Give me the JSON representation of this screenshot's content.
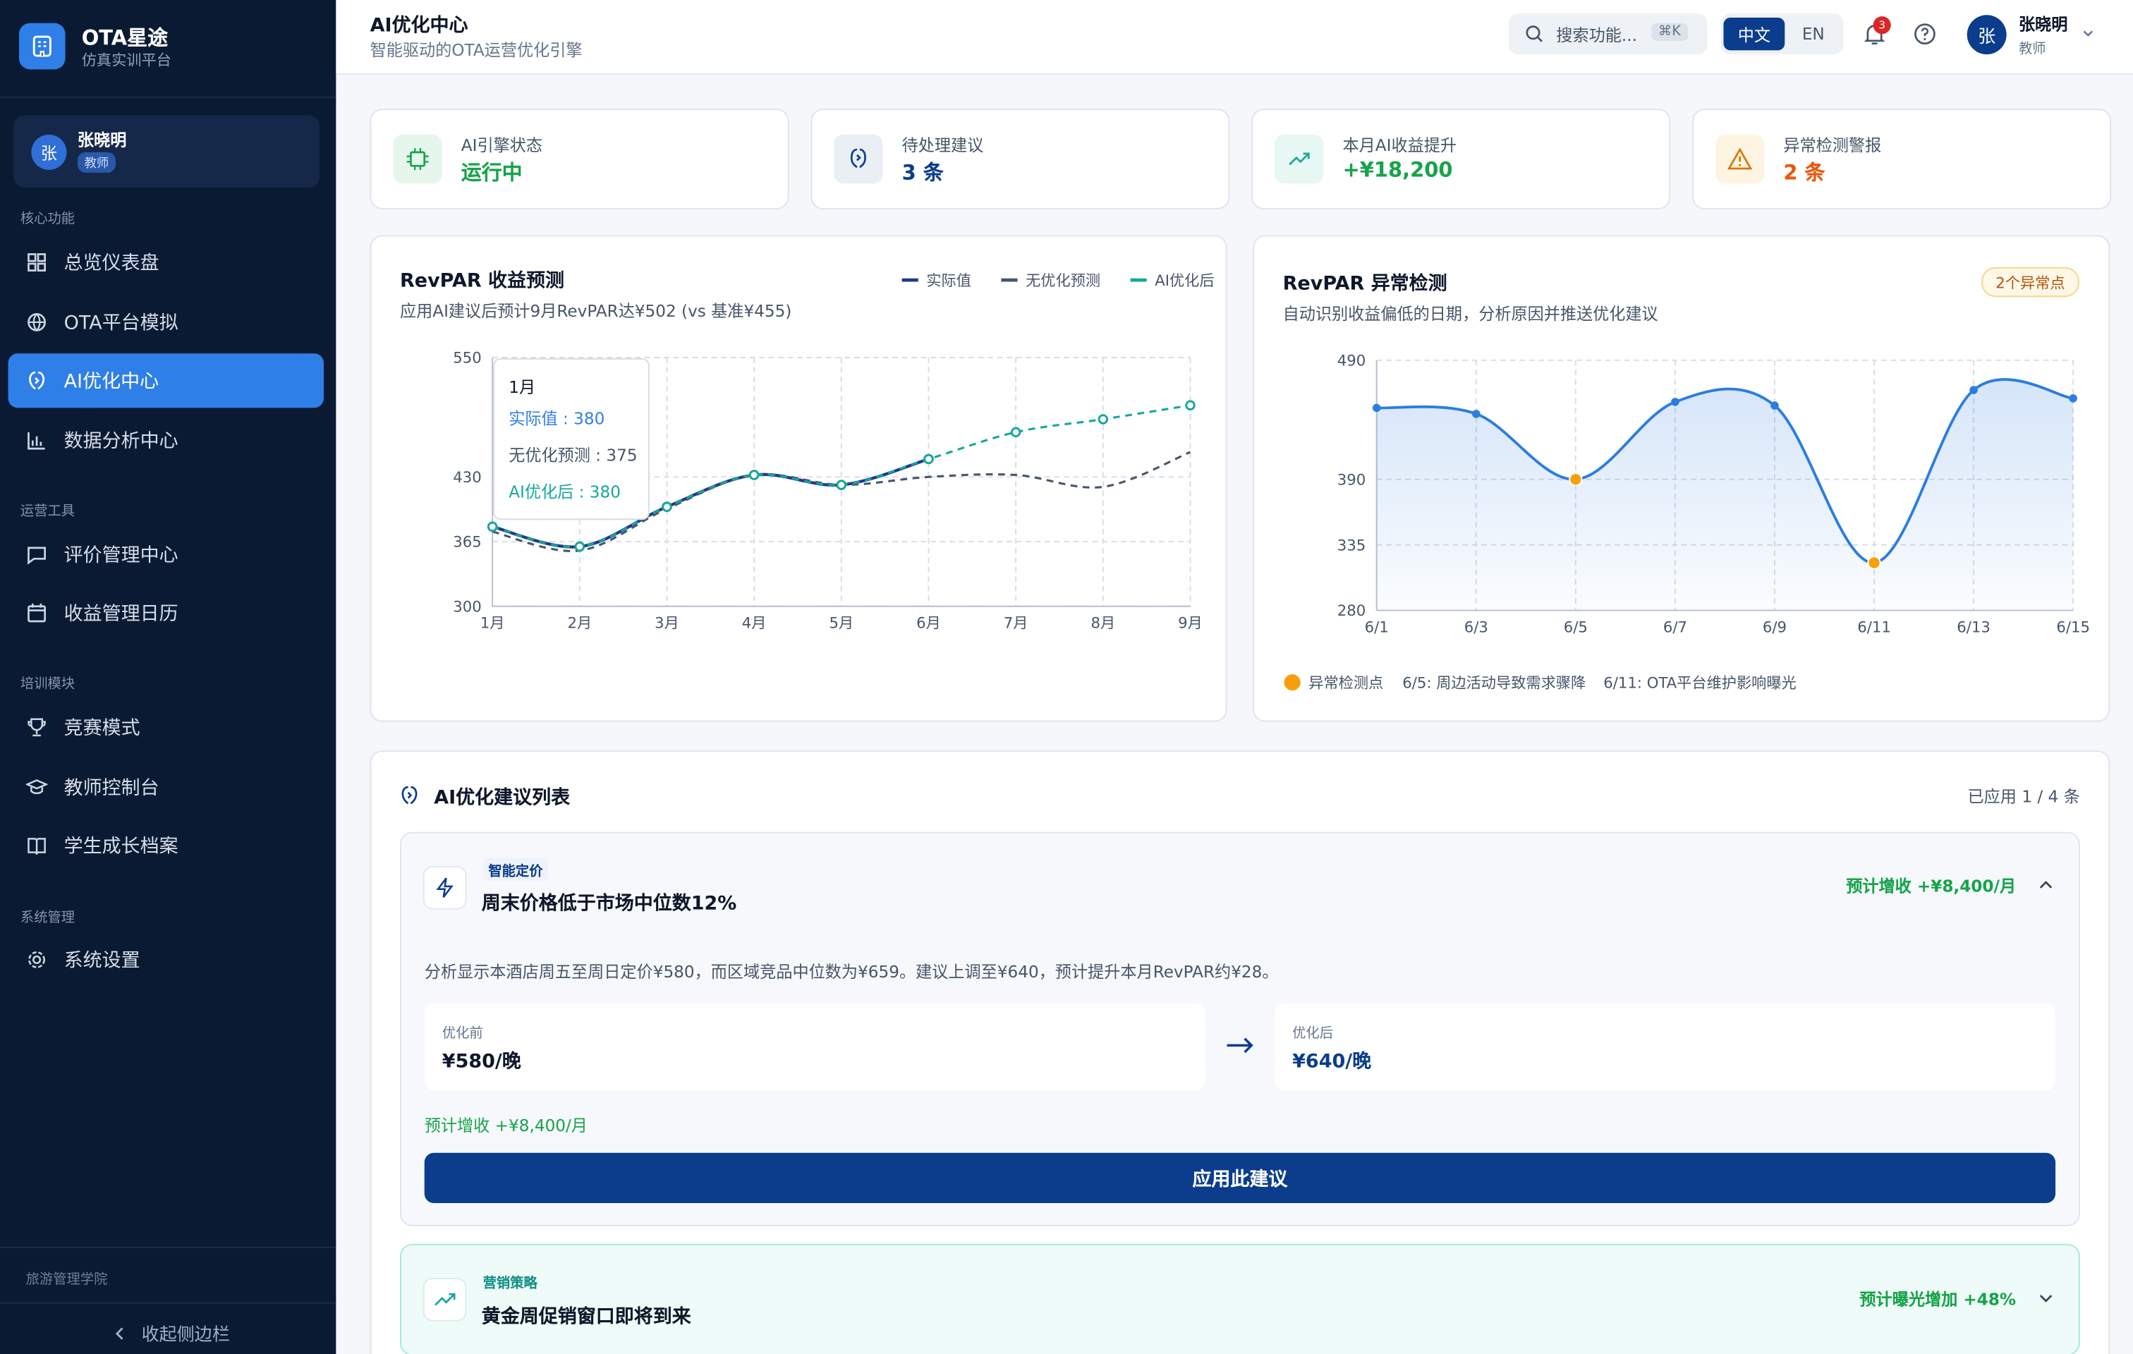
{
  "sidebar": {
    "brand": "OTA星途",
    "brand_sub": "仿真实训平台",
    "user": {
      "avatar": "张",
      "name": "张晓明",
      "role": "教师"
    },
    "sections": [
      {
        "title": "核心功能",
        "items": [
          "总览仪表盘",
          "OTA平台模拟",
          "AI优化中心",
          "数据分析中心"
        ]
      },
      {
        "title": "运营工具",
        "items": [
          "评价管理中心",
          "收益管理日历"
        ]
      },
      {
        "title": "培训模块",
        "items": [
          "竞赛模式",
          "教师控制台",
          "学生成长档案"
        ]
      },
      {
        "title": "系统管理",
        "items": [
          "系统设置"
        ]
      }
    ],
    "footer": "旅游管理学院",
    "collapse": "收起侧边栏"
  },
  "header": {
    "title": "AI优化中心",
    "subtitle": "智能驱动的OTA运营优化引擎",
    "search": "搜索功能...",
    "shortcut": "⌘K",
    "languages": [
      "中文",
      "EN"
    ],
    "notifications": "3",
    "user": {
      "avatar": "张",
      "name": "张晓明",
      "role": "教师"
    }
  },
  "stats": [
    {
      "label": "AI引擎状态",
      "value": "运行中"
    },
    {
      "label": "待处理建议",
      "value": "3 条"
    },
    {
      "label": "本月AI收益提升",
      "value": "+¥18,200"
    },
    {
      "label": "异常检测警报",
      "value": "2 条"
    }
  ],
  "chart_data": [
    {
      "type": "line",
      "title": "RevPAR 收益预测",
      "subtitle": "应用AI建议后预计9月RevPAR达¥502 (vs 基准¥455)",
      "categories": [
        "1月",
        "2月",
        "3月",
        "4月",
        "5月",
        "6月",
        "7月",
        "8月",
        "9月"
      ],
      "series": [
        {
          "name": "实际值",
          "color": "#1e3a8a",
          "dashed": false,
          "values": [
            380,
            360,
            400,
            432,
            422,
            448,
            null,
            null,
            null
          ]
        },
        {
          "name": "无优化预测",
          "color": "#475569",
          "dashed": true,
          "values": [
            375,
            356,
            398,
            432,
            422,
            430,
            432,
            420,
            455
          ]
        },
        {
          "name": "AI优化后",
          "color": "#14a89a",
          "dashed": true,
          "values": [
            380,
            360,
            400,
            432,
            422,
            448,
            475,
            488,
            502
          ]
        }
      ],
      "ylim": [
        300,
        550
      ],
      "yticks": [
        300,
        365,
        430,
        550
      ],
      "grid": true,
      "tooltip": {
        "title": "1月",
        "items": [
          "实际值 : 380",
          "无优化预测 : 375",
          "AI优化后 : 380"
        ]
      }
    },
    {
      "type": "area",
      "title": "RevPAR 异常检测",
      "badge": "2个异常点",
      "subtitle": "自动识别收益偏低的日期，分析原因并推送优化建议",
      "categories": [
        "6/1",
        "6/3",
        "6/5",
        "6/7",
        "6/9",
        "6/11",
        "6/13",
        "6/15"
      ],
      "series": [
        {
          "name": "RevPAR",
          "color": "#2b7de0",
          "values": [
            450,
            445,
            390,
            455,
            452,
            320,
            465,
            458
          ]
        }
      ],
      "anomaly_index": [
        2,
        5
      ],
      "anomaly_color": "#f5a00b",
      "ylim": [
        280,
        490
      ],
      "yticks": [
        280,
        335,
        390,
        490
      ],
      "grid": true,
      "legend": "异常检测点",
      "notes": [
        "6/5: 周边活动导致需求骤降",
        "6/11: OTA平台维护影响曝光"
      ]
    }
  ],
  "suggestions": {
    "title": "AI优化建议列表",
    "count": "已应用 1 / 4 条",
    "items": [
      {
        "tag": "智能定价",
        "title": "周末价格低于市场中位数12%",
        "impact": "预计增收 +¥8,400/月",
        "description": "分析显示本酒店周五至周日定价¥580，而区域竞品中位数为¥659。建议上调至¥640，预计提升本月RevPAR约¥28。",
        "before_label": "优化前",
        "before": "¥580/晚",
        "after_label": "优化后",
        "after": "¥640/晚",
        "button": "应用此建议"
      },
      {
        "tag": "营销策略",
        "title": "黄金周促销窗口即将到来",
        "impact": "预计曝光增加 +48%"
      }
    ]
  }
}
